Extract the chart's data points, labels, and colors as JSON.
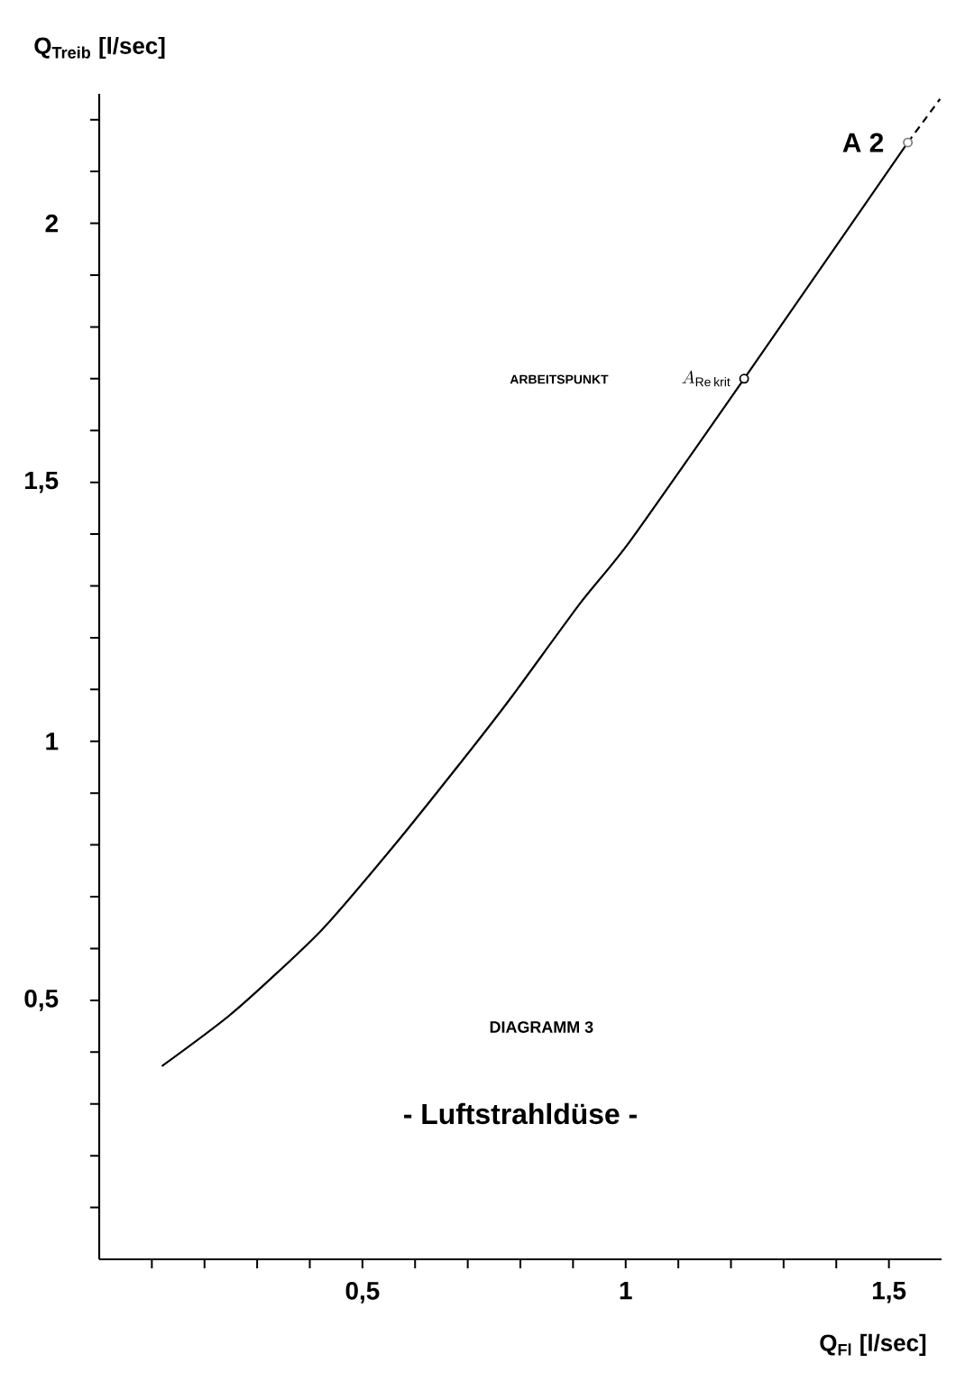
{
  "chart_data": {
    "type": "line",
    "title": "DIAGRAMM 3",
    "subtitle": "- Luftstrahldüse -",
    "xlabel": "Q$_{Fl}$ [l/sec]",
    "ylabel": "Q$_{Treib}$ [l/sec]",
    "annotations": [
      "ARBEITSPUNKT",
      {
        "text": "A_{\\mathrm{Re\\,krit}}",
        "x": 1.225,
        "y": 1.7
      },
      {
        "text": "A 2",
        "x": 1.536,
        "y": 2.156
      }
    ],
    "series": [
      {
        "color": "#000000",
        "line_style": "solid",
        "x": [
          0.119,
          0.257,
          0.421,
          0.562,
          0.703,
          0.785,
          0.914,
          1.008,
          1.225,
          1.536
        ],
        "values": [
          0.373,
          0.479,
          0.634,
          0.801,
          0.98,
          1.088,
          1.267,
          1.386,
          1.7,
          2.156
        ]
      },
      {
        "color": "#000000",
        "line_style": "dashed",
        "x": [
          1.536,
          1.597
        ],
        "values": [
          2.156,
          2.24
        ]
      },
      {
        "type": "scatter",
        "marker": "circle",
        "colors": [
          "#000000",
          "#808080"
        ],
        "x": [
          1.225,
          1.536
        ],
        "values": [
          1.7,
          2.156
        ]
      }
    ],
    "xlim": [
      0,
      1.6
    ],
    "ylim": [
      0,
      2.25
    ],
    "xticks": [
      {
        "value": 0.1,
        "label": null
      },
      {
        "value": 0.2,
        "label": null
      },
      {
        "value": 0.3,
        "label": null
      },
      {
        "value": 0.4,
        "label": null
      },
      {
        "value": 0.5,
        "label": "0,5"
      },
      {
        "value": 0.6,
        "label": null
      },
      {
        "value": 0.7,
        "label": null
      },
      {
        "value": 0.8,
        "label": null
      },
      {
        "value": 0.9,
        "label": null
      },
      1,
      {
        "value": 1.1,
        "label": null
      },
      {
        "value": 1.2,
        "label": null
      },
      {
        "value": 1.3,
        "label": null
      },
      {
        "value": 1.4,
        "label": null
      },
      {
        "value": 1.5,
        "label": "1,5"
      }
    ],
    "yticks": [
      {
        "value": 0.1,
        "label": null
      },
      {
        "value": 0.2,
        "label": null
      },
      {
        "value": 0.3,
        "label": null
      },
      {
        "value": 0.4,
        "label": null
      },
      {
        "value": 0.5,
        "label": "0,5"
      },
      {
        "value": 0.6,
        "label": null
      },
      {
        "value": 0.7,
        "label": null
      },
      {
        "value": 0.8,
        "label": null
      },
      {
        "value": 0.9,
        "label": null
      },
      1,
      {
        "value": 1.1,
        "label": null
      },
      {
        "value": 1.2,
        "label": null
      },
      {
        "value": 1.3,
        "label": null
      },
      {
        "value": 1.4,
        "label": null
      },
      {
        "value": 1.5,
        "label": "1,5"
      },
      {
        "value": 1.6,
        "label": null
      },
      {
        "value": 1.7,
        "label": null
      },
      {
        "value": 1.8,
        "label": null
      },
      {
        "value": 1.9,
        "label": null
      },
      2,
      {
        "value": 2.1,
        "label": null
      },
      {
        "value": 2.2,
        "label": null
      }
    ],
    "grid": false,
    "legend": false
  }
}
